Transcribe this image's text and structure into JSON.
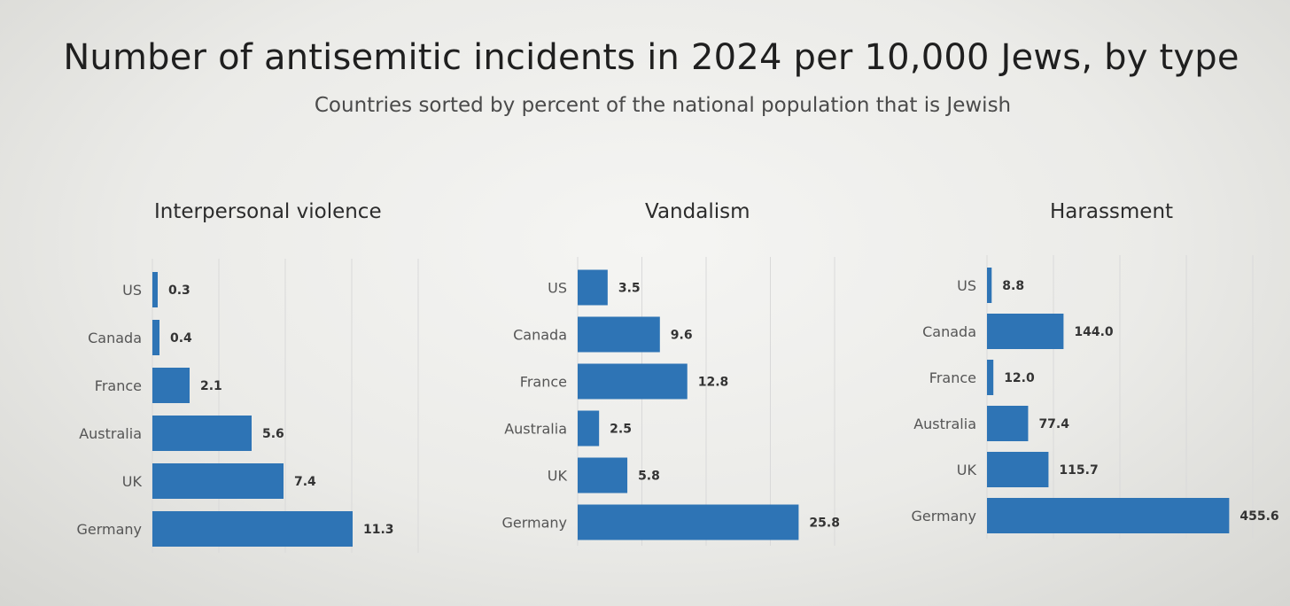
{
  "title": "Number of antisemitic incidents in 2024 per 10,000 Jews, by type",
  "subtitle": "Countries sorted by percent of the national population that is Jewish",
  "chart_data": [
    {
      "type": "bar",
      "orientation": "horizontal",
      "title": "Interpersonal violence",
      "categories": [
        "US",
        "Canada",
        "France",
        "Australia",
        "UK",
        "Germany"
      ],
      "values": [
        0.3,
        0.4,
        2.1,
        5.6,
        7.4,
        11.3
      ],
      "value_labels": [
        "0.3",
        "0.4",
        "2.1",
        "5.6",
        "7.4",
        "11.3"
      ],
      "xlim": [
        0,
        15
      ],
      "grid": true,
      "color": "#2e74b5"
    },
    {
      "type": "bar",
      "orientation": "horizontal",
      "title": "Vandalism",
      "categories": [
        "US",
        "Canada",
        "France",
        "Australia",
        "UK",
        "Germany"
      ],
      "values": [
        3.5,
        9.6,
        12.8,
        2.5,
        5.8,
        25.8
      ],
      "value_labels": [
        "3.5",
        "9.6",
        "12.8",
        "2.5",
        "5.8",
        "25.8"
      ],
      "xlim": [
        0,
        30
      ],
      "grid": true,
      "color": "#2e74b5"
    },
    {
      "type": "bar",
      "orientation": "horizontal",
      "title": "Harassment",
      "categories": [
        "US",
        "Canada",
        "France",
        "Australia",
        "UK",
        "Germany"
      ],
      "values": [
        8.8,
        144.0,
        12.0,
        77.4,
        115.7,
        455.6
      ],
      "value_labels": [
        "8.8",
        "144.0",
        "12.0",
        "77.4",
        "115.7",
        "455.6"
      ],
      "xlim": [
        0,
        500
      ],
      "grid": true,
      "color": "#2e74b5"
    }
  ]
}
